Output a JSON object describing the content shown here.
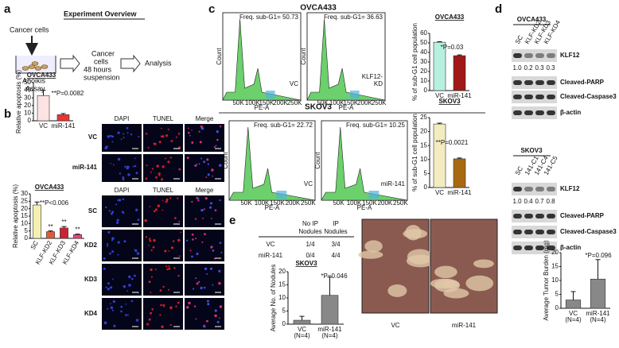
{
  "panel_a": {
    "label": "a",
    "title": "Experiment Overview",
    "cells": "Cancer cells",
    "suspension": [
      "Cancer",
      "cells",
      "48 hours",
      "suspension"
    ],
    "analysis": "Analysis",
    "assay": [
      "Anoikis",
      "Assay"
    ]
  },
  "panel_b": {
    "label": "b",
    "image_headers": [
      "DAPI",
      "TUNEL",
      "Merge"
    ],
    "image_headers_2": [
      "DAPI",
      "TUNEL",
      "Merge"
    ],
    "rows_top": [
      "VC",
      "miR-141"
    ],
    "rows_bottom": [
      "SC",
      "KD2",
      "KD3",
      "KD4"
    ]
  },
  "panel_c": {
    "label": "c",
    "ovca_title": "OVCA433",
    "skov_title": "SKOV3",
    "histograms": [
      {
        "freq": "Freq. sub-G1= 50.73",
        "label": [
          "VC"
        ]
      },
      {
        "freq": "Freq. sub-G1= 36.63",
        "label": [
          "KLF12-",
          "KD"
        ]
      },
      {
        "freq": "Freq. sub-G1= 22.72",
        "label": [
          "VC"
        ]
      },
      {
        "freq": "Freq. sub-G1= 10.25",
        "label": [
          "miR-141"
        ]
      }
    ],
    "x_ticks": [
      "50K",
      "100K",
      "150K",
      "200K",
      "250K"
    ],
    "x_label": "PE-A",
    "y_label": "Count"
  },
  "panel_d": {
    "label": "d",
    "blots": [
      {
        "title": "OVCA433",
        "lanes": [
          "SC",
          "KLF-KD2",
          "KLF-KD3",
          "KLF-KD4"
        ],
        "quant": [
          "1.0",
          "0.2",
          "0.3",
          "0.3"
        ],
        "proteins": [
          "KLF12",
          "Cleaved-PARP",
          "Cleaved-Caspase3",
          "β-actin"
        ]
      },
      {
        "title": "SKOV3",
        "lanes": [
          "SC",
          "141-C1",
          "141-C4",
          "141-C5"
        ],
        "quant": [
          "1.0",
          "0.4",
          "0.7",
          "0.8"
        ],
        "proteins": [
          "KLF12",
          "Cleaved-PARP",
          "Cleaved-Caspase3",
          "β-actin"
        ]
      }
    ]
  },
  "panel_e": {
    "label": "e",
    "table": {
      "header": [
        [
          "No IP",
          "Nodules"
        ],
        [
          "IP",
          "Nodules"
        ]
      ],
      "rows": [
        [
          "VC",
          "1/4",
          "3/4"
        ],
        [
          "miR-141",
          "0/4",
          "4/4"
        ]
      ]
    },
    "photo_labels": [
      "VC",
      "miR-141"
    ]
  },
  "chart_data": [
    {
      "type": "bar",
      "title": "OVCA433",
      "y_label": "Relative apoptosis (%)",
      "categories": [
        "VC",
        "miR-141"
      ],
      "values": [
        33,
        8
      ],
      "errors": [
        7,
        1.5
      ],
      "colors": [
        "#fde3e3",
        "#ee3333"
      ],
      "ylim": [
        0,
        50
      ],
      "yticks": [
        0,
        10,
        20,
        30,
        40,
        50
      ],
      "annotation": "**P=0.0082"
    },
    {
      "type": "bar",
      "title": "OVCA433",
      "y_label": "Relative apoptosis (%)",
      "categories": [
        "SC",
        "KLF-KD2",
        "KLF-KD3",
        "KLF-KD4"
      ],
      "values": [
        22.5,
        4.5,
        7,
        2.5
      ],
      "errors": [
        2,
        0.5,
        1,
        0.4
      ],
      "colors": [
        "#f5f0b0",
        "#e05a3a",
        "#cc2233",
        "#ee4477"
      ],
      "ylim": [
        0,
        30
      ],
      "yticks": [
        0,
        5,
        10,
        15,
        20,
        25,
        30
      ],
      "annotation": "**P<0.006",
      "bar_labels": [
        null,
        "**",
        "**",
        "**"
      ]
    },
    {
      "type": "bar",
      "title": "OVCA433",
      "y_label": "% of sub-G1 cell population",
      "categories": [
        "VC",
        "miR-141"
      ],
      "values": [
        50.7,
        36.6
      ],
      "errors": [
        0.6,
        0.8
      ],
      "colors": [
        "#b8f0e0",
        "#a01818"
      ],
      "ylim": [
        0,
        60
      ],
      "yticks": [
        0,
        10,
        20,
        30,
        40,
        50,
        60
      ],
      "annotation": "*P=0.03"
    },
    {
      "type": "bar",
      "title": "SKOV3",
      "y_label": "% of sub-G1 cell population",
      "categories": [
        "VC",
        "miR-141"
      ],
      "values": [
        22.7,
        10.25
      ],
      "errors": [
        0.3,
        0.3
      ],
      "colors": [
        "#f3ecc0",
        "#a86a10"
      ],
      "ylim": [
        0,
        25
      ],
      "yticks": [
        0,
        5,
        10,
        15,
        20,
        25
      ],
      "annotation": "**P=0.0021"
    },
    {
      "type": "bar",
      "title": "SKOV3",
      "y_label": "Average No. of Nodules",
      "categories": [
        "VC",
        "miR-141"
      ],
      "n_labels": [
        "(N=4)",
        "(N=4)"
      ],
      "values": [
        1.5,
        11
      ],
      "errors": [
        1.5,
        7
      ],
      "colors": [
        "#888888",
        "#888888"
      ],
      "ylim": [
        0,
        20
      ],
      "yticks": [
        0,
        5,
        10,
        15,
        20
      ],
      "annotation": "*P=0.046"
    },
    {
      "type": "bar",
      "y_label": "Average Tumor Burden (mg)",
      "categories": [
        "VC",
        "miR-141"
      ],
      "n_labels": [
        "(N=4)",
        "(N=4)"
      ],
      "values": [
        3,
        10.5
      ],
      "errors": [
        3,
        7
      ],
      "colors": [
        "#888888",
        "#888888"
      ],
      "ylim": [
        0,
        20
      ],
      "yticks": [
        0,
        5,
        10,
        15,
        20
      ],
      "annotation": "*P=0.096"
    }
  ]
}
